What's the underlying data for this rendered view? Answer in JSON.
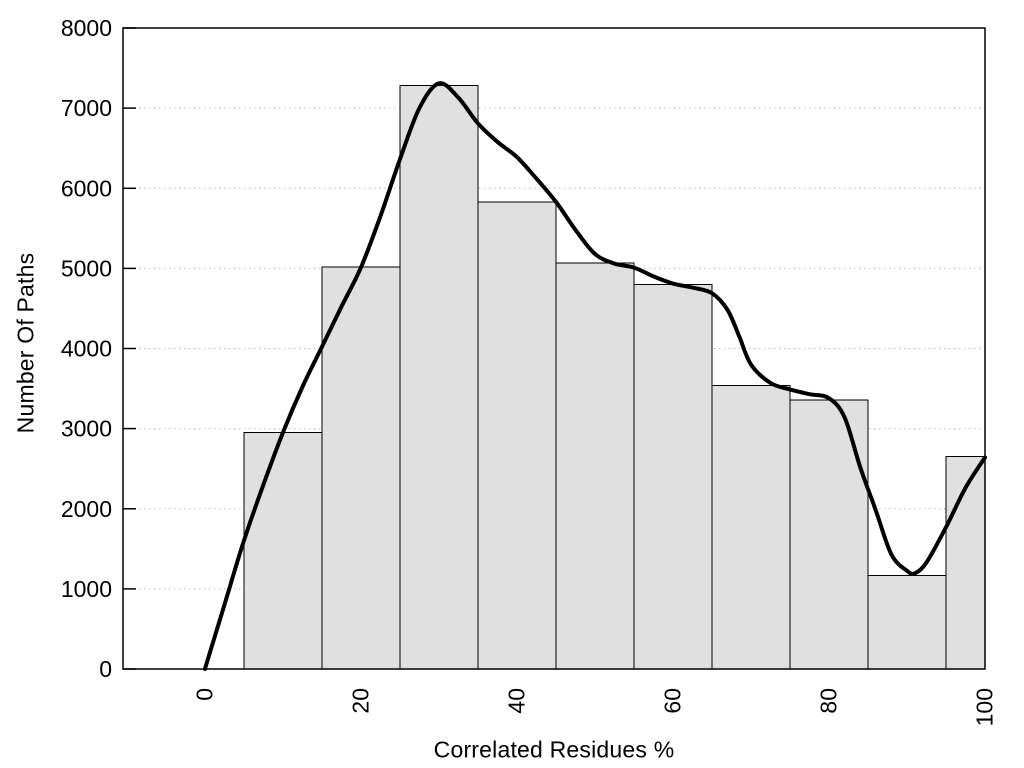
{
  "chart_data": {
    "type": "bar",
    "subtype": "histogram-with-smoothed-curve",
    "title": "",
    "xlabel": "Correlated Residues %",
    "ylabel": "Number Of Paths",
    "xlim": [
      -10.5,
      100
    ],
    "ylim": [
      0,
      8000
    ],
    "x_ticks": [
      0,
      20,
      40,
      60,
      80,
      100
    ],
    "y_ticks": [
      0,
      1000,
      2000,
      3000,
      4000,
      5000,
      6000,
      7000,
      8000
    ],
    "grid": "horizontal-dotted",
    "legend": "none",
    "bars": {
      "bin_edges": [
        5,
        15,
        25,
        35,
        45,
        55,
        65,
        75,
        85,
        95,
        100
      ],
      "counts": [
        2950,
        5020,
        7280,
        5830,
        5070,
        4800,
        3540,
        3360,
        1170,
        2650
      ],
      "fill_color": "#e0e0e0",
      "stroke_color": "#000000"
    },
    "curve": {
      "name": "smoothed-trend",
      "color": "#000000",
      "stroke_width": 4,
      "points": [
        [
          0,
          0
        ],
        [
          2.5,
          800
        ],
        [
          5,
          1600
        ],
        [
          7.5,
          2300
        ],
        [
          10,
          2950
        ],
        [
          12.5,
          3520
        ],
        [
          15,
          4020
        ],
        [
          17.5,
          4520
        ],
        [
          20,
          5010
        ],
        [
          22.5,
          5650
        ],
        [
          25,
          6360
        ],
        [
          27.5,
          7000
        ],
        [
          30,
          7310
        ],
        [
          32.5,
          7130
        ],
        [
          35,
          6810
        ],
        [
          37.5,
          6580
        ],
        [
          40,
          6390
        ],
        [
          42.5,
          6120
        ],
        [
          45,
          5830
        ],
        [
          47.5,
          5480
        ],
        [
          50,
          5180
        ],
        [
          52.5,
          5060
        ],
        [
          55,
          5010
        ],
        [
          57.5,
          4900
        ],
        [
          60,
          4810
        ],
        [
          62.5,
          4760
        ],
        [
          65,
          4690
        ],
        [
          67,
          4480
        ],
        [
          68.5,
          4150
        ],
        [
          70,
          3800
        ],
        [
          72.5,
          3570
        ],
        [
          75,
          3490
        ],
        [
          77.5,
          3430
        ],
        [
          80,
          3380
        ],
        [
          82,
          3140
        ],
        [
          84,
          2520
        ],
        [
          86,
          1980
        ],
        [
          88,
          1430
        ],
        [
          90,
          1225
        ],
        [
          91,
          1195
        ],
        [
          92.5,
          1330
        ],
        [
          95,
          1770
        ],
        [
          97.5,
          2260
        ],
        [
          100,
          2640
        ]
      ]
    },
    "colors": {
      "axis": "#000000",
      "text": "#000000",
      "gridline": "#bbbbbb",
      "background": "#ffffff"
    },
    "tick_font_px": 23,
    "title_font_px": 23
  }
}
